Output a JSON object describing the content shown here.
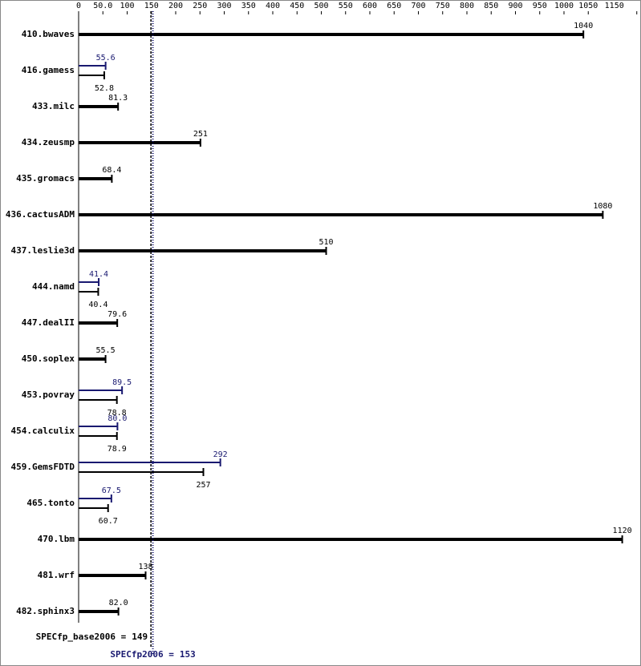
{
  "chart_data": {
    "type": "bar",
    "orientation": "horizontal",
    "categories": [
      "410.bwaves",
      "416.gamess",
      "433.milc",
      "434.zeusmp",
      "435.gromacs",
      "436.cactusADM",
      "437.leslie3d",
      "444.namd",
      "447.dealII",
      "450.soplex",
      "453.povray",
      "454.calculix",
      "459.GemsFDTD",
      "465.tonto",
      "470.lbm",
      "481.wrf",
      "482.sphinx3"
    ],
    "series": [
      {
        "color": "#000000",
        "values": [
          1040,
          52.8,
          81.3,
          251,
          68.4,
          1080,
          510,
          40.4,
          79.6,
          55.5,
          78.8,
          78.9,
          257,
          60.7,
          1120,
          138,
          82
        ],
        "value_labels": [
          "1040",
          "52.8",
          "81.3",
          "251",
          "68.4",
          "1080",
          "510",
          "40.4",
          "79.6",
          "55.5",
          "78.8",
          "78.9",
          "257",
          "60.7",
          "1120",
          "138",
          "82.0"
        ]
      },
      {
        "color": "#191970",
        "values": [
          null,
          55.6,
          null,
          null,
          null,
          null,
          null,
          41.4,
          null,
          null,
          89.5,
          80,
          292,
          67.5,
          null,
          null,
          null
        ],
        "value_labels": [
          null,
          "55.6",
          null,
          null,
          null,
          null,
          null,
          "41.4",
          null,
          null,
          "89.5",
          "80.0",
          "292",
          "67.5",
          null,
          null,
          null
        ]
      }
    ],
    "xlim": [
      0,
      1150
    ],
    "xticks": [
      0,
      {
        "value": 50,
        "label": "50.0"
      },
      100,
      150,
      200,
      250,
      300,
      350,
      400,
      450,
      500,
      550,
      600,
      650,
      700,
      750,
      800,
      850,
      900,
      950,
      1000,
      1050,
      1150
    ],
    "reference_lines": [
      {
        "label": "SPECfp_base2006 =",
        "value": 149,
        "color": "#000000"
      },
      {
        "label": "SPECfp2006 =",
        "value": 153,
        "color": "#191970"
      }
    ]
  }
}
